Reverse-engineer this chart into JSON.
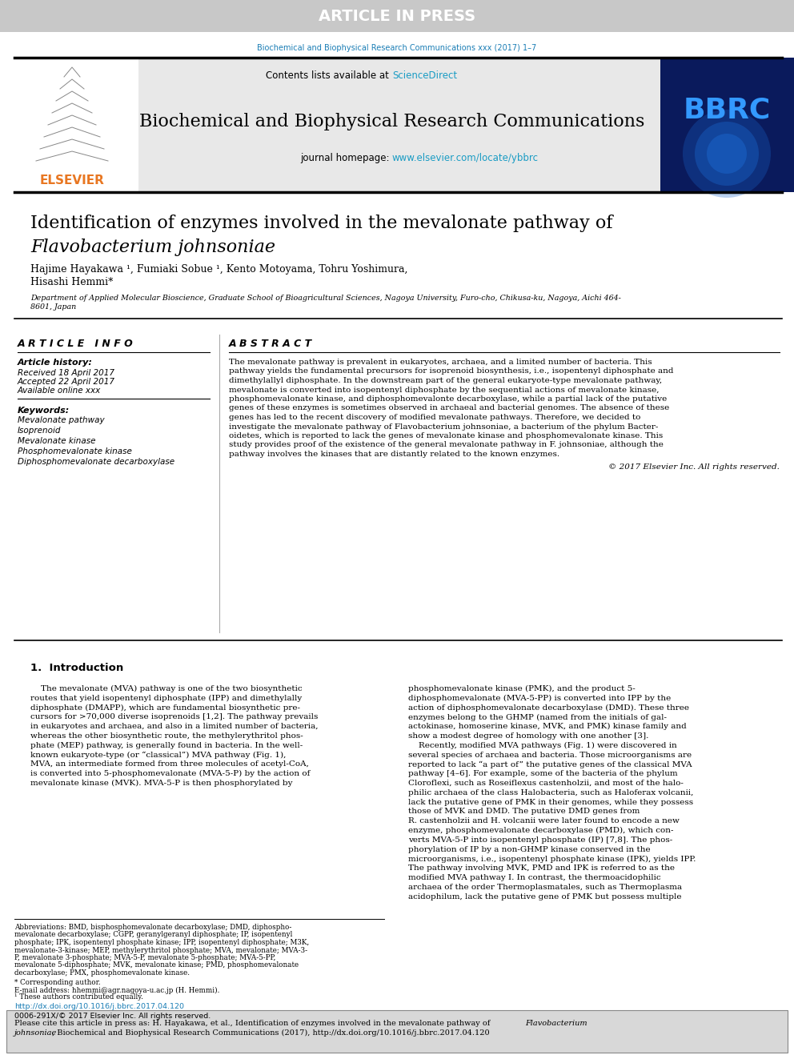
{
  "article_in_press_text": "ARTICLE IN PRESS",
  "article_in_press_bg": "#c8c8c8",
  "article_in_press_text_color": "#ffffff",
  "journal_ref": "Biochemical and Biophysical Research Communications xxx (2017) 1–7",
  "journal_ref_color": "#1a7db5",
  "science_direct_color": "#1a9cc4",
  "journal_title": "Biochemical and Biophysical Research Communications",
  "journal_url": "www.elsevier.com/locate/ybbrc",
  "journal_url_color": "#1a9cc4",
  "elsevier_color": "#e87722",
  "bbrc_bg": "#0a1a5c",
  "paper_title_line1": "Identification of enzymes involved in the mevalonate pathway of",
  "paper_title_line2": "Flavobacterium johnsoniae",
  "authors_line1": "Hajime Hayakawa ¹, Fumiaki Sobue ¹, Kento Motoyama, Tohru Yoshimura,",
  "authors_line2": "Hisashi Hemmi*",
  "aff1": "Department of Applied Molecular Bioscience, Graduate School of Bioagricultural Sciences, Nagoya University, Furo-cho, Chikusa-ku, Nagoya, Aichi 464-",
  "aff2": "8601, Japan",
  "article_info_title": "A R T I C L E   I N F O",
  "article_history_label": "Article history:",
  "received": "Received 18 April 2017",
  "accepted": "Accepted 22 April 2017",
  "available": "Available online xxx",
  "keywords_label": "Keywords:",
  "keywords": [
    "Mevalonate pathway",
    "Isoprenoid",
    "Mevalonate kinase",
    "Phosphomevalonate kinase",
    "Diphosphomevalonate decarboxylase"
  ],
  "abstract_title": "A B S T R A C T",
  "abs_lines": [
    "The mevalonate pathway is prevalent in eukaryotes, archaea, and a limited number of bacteria. This",
    "pathway yields the fundamental precursors for isoprenoid biosynthesis, i.e., isopentenyl diphosphate and",
    "dimethylallyl diphosphate. In the downstream part of the general eukaryote-type mevalonate pathway,",
    "mevalonate is converted into isopentenyl diphosphate by the sequential actions of mevalonate kinase,",
    "phosphomevalonate kinase, and diphosphomevalonte decarboxylase, while a partial lack of the putative",
    "genes of these enzymes is sometimes observed in archaeal and bacterial genomes. The absence of these",
    "genes has led to the recent discovery of modified mevalonate pathways. Therefore, we decided to",
    "investigate the mevalonate pathway of Flavobacterium johnsoniae, a bacterium of the phylum Bacter-",
    "oidetes, which is reported to lack the genes of mevalonate kinase and phosphomevalonate kinase. This",
    "study provides proof of the existence of the general mevalonate pathway in F. johnsoniae, although the",
    "pathway involves the kinases that are distantly related to the known enzymes."
  ],
  "copyright_text": "© 2017 Elsevier Inc. All rights reserved.",
  "intro_title": "1.  Introduction",
  "col1_lines": [
    "    The mevalonate (MVA) pathway is one of the two biosynthetic",
    "routes that yield isopentenyl diphosphate (IPP) and dimethylally",
    "diphosphate (DMAPP), which are fundamental biosynthetic pre-",
    "cursors for >70,000 diverse isoprenoids [1,2]. The pathway prevails",
    "in eukaryotes and archaea, and also in a limited number of bacteria,",
    "whereas the other biosynthetic route, the methylerythritol phos-",
    "phate (MEP) pathway, is generally found in bacteria. In the well-",
    "known eukaryote-type (or “classical”) MVA pathway (Fig. 1),",
    "MVA, an intermediate formed from three molecules of acetyl-CoA,",
    "is converted into 5-phosphomevalonate (MVA-5-P) by the action of",
    "mevalonate kinase (MVK). MVA-5-P is then phosphorylated by"
  ],
  "col2_lines": [
    "phosphomevalonate kinase (PMK), and the product 5-",
    "diphosphomevalonate (MVA-5-PP) is converted into IPP by the",
    "action of diphosphomevalonate decarboxylase (DMD). These three",
    "enzymes belong to the GHMP (named from the initials of gal-",
    "actokinase, homoserine kinase, MVK, and PMK) kinase family and",
    "show a modest degree of homology with one another [3].",
    "    Recently, modified MVA pathways (Fig. 1) were discovered in",
    "several species of archaea and bacteria. Those microorganisms are",
    "reported to lack “a part of” the putative genes of the classical MVA",
    "pathway [4–6]. For example, some of the bacteria of the phylum",
    "Cloroflexi, such as Roseiflexus castenholzii, and most of the halo-",
    "philic archaea of the class Halobacteria, such as Haloferax volcanii,",
    "lack the putative gene of PMK in their genomes, while they possess",
    "those of MVK and DMD. The putative DMD genes from",
    "R. castenholzii and H. volcanii were later found to encode a new",
    "enzyme, phosphomevalonate decarboxylase (PMD), which con-",
    "verts MVA-5-P into isopentenyl phosphate (IP) [7,8]. The phos-",
    "phorylation of IP by a non-GHMP kinase conserved in the",
    "microorganisms, i.e., isopentenyl phosphate kinase (IPK), yields IPP.",
    "The pathway involving MVK, PMD and IPK is referred to as the",
    "modified MVA pathway I. In contrast, the thermoacidophilic",
    "archaea of the order Thermoplasmatales, such as Thermoplasma",
    "acidophilum, lack the putative gene of PMK but possess multiple"
  ],
  "fn_lines": [
    "Abbreviations: BMD, bisphosphomevalonate decarboxylase; DMD, diphospho-",
    "mevalonate decarboxylase; CGPP, geranylgeranyl diphosphate; IP, isopentenyl",
    "phosphate; IPK, isopentenyl phosphate kinase; IPP, isopentenyl diphosphate; M3K,",
    "mevalonate-3-kinase; MEP, methylerythritol phosphate; MVA, mevalonate; MVA-3-",
    "P, mevalonate 3-phosphate; MVA-5-P, mevalonate 5-phosphate; MVA-5-PP,",
    "mevalonate 5-diphosphate; MVK, mevalonate kinase; PMD, phosphomevalonate",
    "decarboxylase; PMX, phosphomevalonate kinase."
  ],
  "fn_corresponding": "* Corresponding author.",
  "fn_email": "E-mail address: hhemmi@agr.nagoya-u.ac.jp (H. Hemmi).",
  "fn_equal": "¹ These authors contributed equally.",
  "doi_text": "http://dx.doi.org/10.1016/j.bbrc.2017.04.120",
  "issn_text": "0006-291X/© 2017 Elsevier Inc. All rights reserved.",
  "cite_line1": "Please cite this article in press as: H. Hayakawa, et al., Identification of enzymes involved in the mevalonate pathway of Flavobacterium",
  "cite_line1_normal": "Please cite this article in press as: H. Hayakawa, et al., Identification of enzymes involved in the mevalonate pathway of ",
  "cite_line1_italic": "Flavobacterium",
  "cite_line2": "johnsoniae, Biochemical and Biophysical Research Communications (2017), http://dx.doi.org/10.1016/j.bbrc.2017.04.120",
  "cite_line2_italic": "johnsoniae",
  "cite_line2_normal": ", Biochemical and Biophysical Research Communications (2017), http://dx.doi.org/10.1016/j.bbrc.2017.04.120",
  "cite_box_bg": "#d8d8d8",
  "page_bg": "#ffffff",
  "teal_color": "#1a7db5"
}
